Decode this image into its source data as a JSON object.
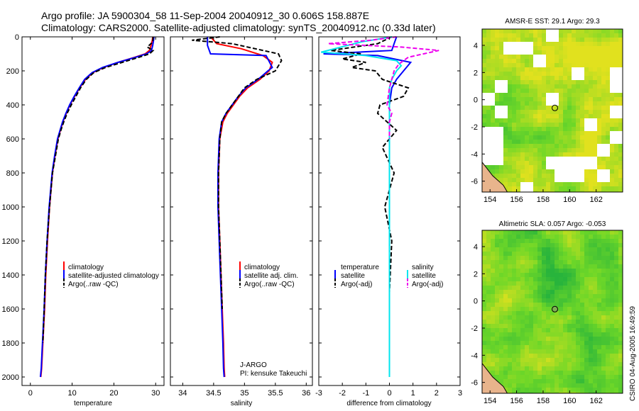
{
  "header": {
    "line1": "Argo profile: JA 5900304_58 11-Sep-2004 20040912_30 0.606S 158.887E",
    "line2": "Climatology: CARS2000. Satellite-adjusted climatology: synTS_20040912.nc (0.33d later)"
  },
  "chart_data": [
    {
      "type": "line",
      "title": "",
      "xlabel": "temperature",
      "ylabel": "",
      "xlim": [
        -2,
        32
      ],
      "ylim": [
        2050,
        0
      ],
      "xticks": [
        "0",
        "10",
        "20",
        "30"
      ],
      "xtick_values": [
        0,
        10,
        20,
        30
      ],
      "yticks": [
        "0",
        "200",
        "400",
        "600",
        "800",
        "1000",
        "1200",
        "1400",
        "1600",
        "1800",
        "2000"
      ],
      "ytick_values": [
        0,
        200,
        400,
        600,
        800,
        1000,
        1200,
        1400,
        1600,
        1800,
        2000
      ],
      "legend": [
        "climatology",
        "satellite-adjusted climatology",
        "Argo(..raw -QC)"
      ],
      "series": [
        {
          "name": "climatology",
          "color": "#ff0000",
          "dash": false,
          "x": [
            29.3,
            29.2,
            28.9,
            28.5,
            27.5,
            25.0,
            21.0,
            17.5,
            15.0,
            13.2,
            11.8,
            10.6,
            9.5,
            8.6,
            7.8,
            7.2,
            6.6,
            5.9,
            5.3,
            4.6,
            4.1,
            3.7,
            3.4,
            3.1,
            2.9,
            2.7,
            2.5
          ],
          "y": [
            0,
            20,
            50,
            80,
            100,
            120,
            150,
            180,
            210,
            250,
            300,
            350,
            400,
            450,
            500,
            550,
            600,
            700,
            800,
            1000,
            1200,
            1400,
            1600,
            1750,
            1850,
            1950,
            2000
          ]
        },
        {
          "name": "satellite-adjusted climatology",
          "color": "#0000ff",
          "dash": false,
          "x": [
            29.6,
            29.5,
            29.3,
            29.0,
            27.8,
            25.2,
            21.0,
            17.3,
            14.8,
            13.0,
            11.7,
            10.5,
            9.4,
            8.5,
            7.7,
            7.1,
            6.5,
            5.8,
            5.2,
            4.5,
            4.0,
            3.6,
            3.3,
            3.0,
            2.8,
            2.6,
            2.4
          ],
          "y": [
            0,
            20,
            50,
            80,
            100,
            120,
            150,
            180,
            210,
            250,
            300,
            350,
            400,
            450,
            500,
            550,
            600,
            700,
            800,
            1000,
            1200,
            1400,
            1600,
            1750,
            1850,
            1950,
            2000
          ]
        },
        {
          "name": "Argo(..raw -QC)",
          "color": "#000000",
          "dash": true,
          "x": [
            29.4,
            29.3,
            28.0,
            29.4,
            28.5,
            26.0,
            22.0,
            18.0,
            15.2,
            13.4,
            12.0,
            10.9,
            9.8,
            8.8,
            8.0,
            7.3,
            6.7,
            6.0,
            5.3,
            4.6,
            4.0,
            3.6,
            3.3,
            3.0
          ],
          "y": [
            0,
            30,
            60,
            80,
            100,
            120,
            150,
            180,
            210,
            250,
            300,
            350,
            400,
            450,
            500,
            550,
            600,
            700,
            800,
            1000,
            1200,
            1400,
            1600,
            1800
          ]
        }
      ]
    },
    {
      "type": "line",
      "title": "",
      "xlabel": "salinity",
      "ylabel": "",
      "xlim": [
        33.8,
        36.1
      ],
      "ylim": [
        2050,
        0
      ],
      "xticks": [
        "34",
        "34.5",
        "35",
        "35.5",
        "36"
      ],
      "xtick_values": [
        34,
        34.5,
        35,
        35.5,
        36
      ],
      "legend": [
        "climatology",
        "satellite adj. clim.",
        "Argo(..raw -QC)"
      ],
      "annotation": [
        "J-ARGO",
        "PI: kensuke Takeuchi"
      ],
      "series": [
        {
          "name": "climatology",
          "color": "#ff0000",
          "dash": false,
          "x": [
            34.45,
            34.55,
            34.95,
            35.3,
            35.45,
            35.4,
            35.25,
            35.05,
            34.92,
            34.82,
            34.72,
            34.65,
            34.6,
            34.58,
            34.58,
            34.6,
            34.62,
            34.64,
            34.66,
            34.67,
            34.68
          ],
          "y": [
            0,
            40,
            70,
            110,
            150,
            200,
            250,
            300,
            350,
            400,
            450,
            500,
            600,
            800,
            1000,
            1200,
            1400,
            1600,
            1800,
            1950,
            2000
          ]
        },
        {
          "name": "satellite adj. clim.",
          "color": "#0000ff",
          "dash": false,
          "x": [
            34.4,
            34.4,
            34.45,
            35.35,
            35.45,
            35.38,
            35.22,
            35.02,
            34.9,
            34.8,
            34.7,
            34.63,
            34.59,
            34.57,
            34.57,
            34.59,
            34.61,
            34.63,
            34.65,
            34.66,
            34.67
          ],
          "y": [
            0,
            50,
            100,
            110,
            180,
            200,
            250,
            300,
            350,
            400,
            450,
            500,
            600,
            800,
            1000,
            1200,
            1400,
            1600,
            1800,
            1950,
            2000
          ]
        },
        {
          "name": "Argo(..raw -QC)",
          "color": "#000000",
          "dash": true,
          "x": [
            34.6,
            34.15,
            34.8,
            35.55,
            35.6,
            35.5,
            35.2,
            35.0,
            34.9,
            34.8,
            34.7,
            34.63,
            34.6,
            34.58,
            34.58,
            34.6,
            34.62,
            34.64
          ],
          "y": [
            0,
            20,
            40,
            100,
            140,
            200,
            250,
            300,
            350,
            400,
            450,
            500,
            600,
            800,
            1000,
            1200,
            1400,
            1600
          ]
        }
      ]
    },
    {
      "type": "line",
      "title": "",
      "xlabel": "difference from climatology",
      "ylabel": "",
      "xlim": [
        -3,
        3
      ],
      "ylim": [
        2050,
        0
      ],
      "xticks": [
        "-3",
        "-2",
        "-1",
        "0",
        "1",
        "2",
        "3"
      ],
      "xtick_values": [
        -3,
        -2,
        -1,
        0,
        1,
        2,
        3
      ],
      "legend_left_title": "temperature",
      "legend_right_title": "salinity",
      "legend": [
        "satellite",
        "Argo(-adj)",
        "satellite",
        "Argo(-adj)"
      ],
      "series": [
        {
          "name": "temperature satellite",
          "color": "#0000ff",
          "dash": false,
          "x": [
            0.3,
            0.2,
            0.1,
            -2.8,
            -0.5,
            0.9,
            0.6,
            0.3,
            0.1,
            0.0,
            0.0,
            0.0,
            0.0,
            0.0,
            0.0
          ],
          "y": [
            0,
            40,
            80,
            100,
            110,
            150,
            200,
            250,
            300,
            400,
            500,
            800,
            1200,
            1600,
            2000
          ]
        },
        {
          "name": "temperature Argo(-adj)",
          "color": "#000000",
          "dash": true,
          "x": [
            0.1,
            -0.5,
            -2.5,
            -1.2,
            -2.0,
            -1.0,
            -1.6,
            -0.6,
            -0.3,
            0.8,
            0.6,
            -0.4,
            -0.5,
            -0.1,
            0.3,
            -0.3,
            0.2,
            -0.2,
            0.1,
            0.0,
            0.0
          ],
          "y": [
            0,
            40,
            80,
            100,
            130,
            150,
            180,
            200,
            250,
            300,
            350,
            400,
            450,
            500,
            550,
            650,
            800,
            1000,
            1200,
            1500,
            1800
          ]
        },
        {
          "name": "salinity satellite",
          "color": "#00e5ee",
          "dash": false,
          "x": [
            0.1,
            -1.2,
            -2.9,
            -1.0,
            0.3,
            0.5,
            0.3,
            0.1,
            0.0,
            0.0,
            0.0,
            0.0,
            0.0,
            0.0
          ],
          "y": [
            0,
            30,
            90,
            110,
            140,
            170,
            200,
            250,
            300,
            400,
            600,
            1000,
            1500,
            2000
          ]
        },
        {
          "name": "salinity Argo(-adj)",
          "color": "#ee00ee",
          "dash": true,
          "x": [
            0.3,
            -0.8,
            -2.6,
            0.5,
            2.1,
            0.8,
            0.4,
            0.2,
            0.0,
            -0.1,
            0.1,
            0.0,
            0.0
          ],
          "y": [
            0,
            20,
            40,
            60,
            80,
            120,
            160,
            200,
            300,
            400,
            450,
            500,
            600
          ]
        }
      ]
    },
    {
      "type": "heatmap",
      "title": "AMSR-E SST: 29.1 Argo: 29.3",
      "xticks": [
        "154",
        "156",
        "158",
        "160",
        "162"
      ],
      "xtick_values": [
        154,
        156,
        158,
        160,
        162
      ],
      "yticks": [
        "4",
        "2",
        "0",
        "-2",
        "-4",
        "-6"
      ],
      "ytick_values": [
        4,
        2,
        0,
        -2,
        -4,
        -6
      ],
      "xlim": [
        153.4,
        164
      ],
      "ylim": [
        -6.8,
        5.2
      ],
      "marker": [
        158.887,
        -0.606
      ]
    },
    {
      "type": "heatmap",
      "title": "Altimetric SLA: 0.057 Argo: -0.053",
      "xticks": [
        "154",
        "156",
        "158",
        "160",
        "162"
      ],
      "xtick_values": [
        154,
        156,
        158,
        160,
        162
      ],
      "yticks": [
        "4",
        "2",
        "0",
        "-2",
        "-4",
        "-6"
      ],
      "ytick_values": [
        4,
        2,
        0,
        -2,
        -4,
        -6
      ],
      "xlim": [
        153.4,
        164
      ],
      "ylim": [
        -6.8,
        5.2
      ],
      "marker": [
        158.887,
        -0.606
      ]
    }
  ],
  "side_label": "CSIRO 04-Aug-2005 16:49:59"
}
